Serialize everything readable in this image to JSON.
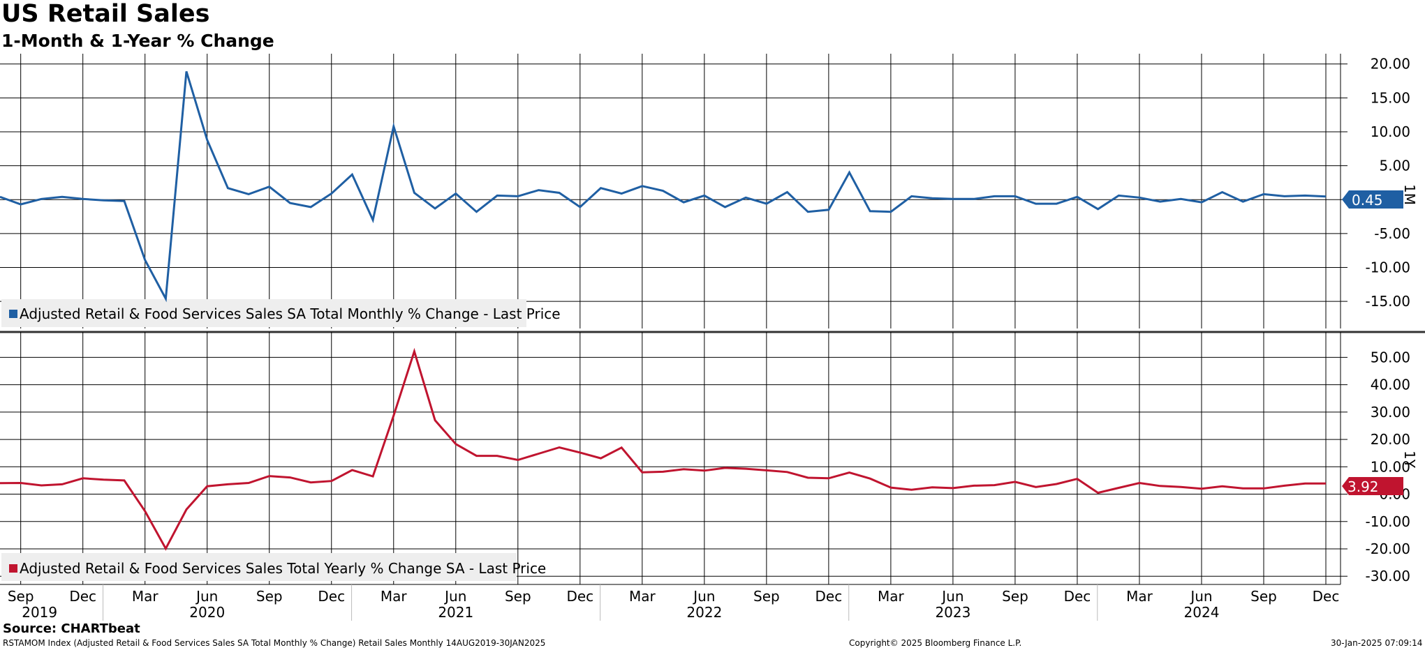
{
  "title": "US Retail Sales",
  "subtitle": "1-Month & 1-Year % Change",
  "source": "Source: CHARTbeat",
  "footer": {
    "left": "RSTAMOM Index (Adjusted Retail & Food Services Sales SA Total Monthly % Change) Retail Sales  Monthly 14AUG2019-30JAN2025",
    "center": "Copyright© 2025 Bloomberg Finance L.P.",
    "right": "30-Jan-2025 07:09:14"
  },
  "colors": {
    "monthly": "#1f5fa3",
    "yearly": "#c0142f"
  },
  "chart_data": [
    {
      "type": "line",
      "name": "1M",
      "legend": "Adjusted Retail & Food Services Sales SA Total Monthly % Change - Last Price",
      "last_value": "0.45",
      "ylim": [
        -19,
        21
      ],
      "yticks": [
        20,
        15,
        10,
        5,
        0,
        -5,
        -10,
        -15
      ],
      "ytick_labels": [
        "20.00",
        "15.00",
        "10.00",
        "5.00",
        "",
        "-5.00",
        "-10.00",
        "-15.00"
      ],
      "x": [
        "2019-08",
        "2019-09",
        "2019-10",
        "2019-11",
        "2019-12",
        "2020-01",
        "2020-02",
        "2020-03",
        "2020-04",
        "2020-05",
        "2020-06",
        "2020-07",
        "2020-08",
        "2020-09",
        "2020-10",
        "2020-11",
        "2020-12",
        "2021-01",
        "2021-02",
        "2021-03",
        "2021-04",
        "2021-05",
        "2021-06",
        "2021-07",
        "2021-08",
        "2021-09",
        "2021-10",
        "2021-11",
        "2021-12",
        "2022-01",
        "2022-02",
        "2022-03",
        "2022-04",
        "2022-05",
        "2022-06",
        "2022-07",
        "2022-08",
        "2022-09",
        "2022-10",
        "2022-11",
        "2022-12",
        "2023-01",
        "2023-02",
        "2023-03",
        "2023-04",
        "2023-05",
        "2023-06",
        "2023-07",
        "2023-08",
        "2023-09",
        "2023-10",
        "2023-11",
        "2023-12",
        "2024-01",
        "2024-02",
        "2024-03",
        "2024-04",
        "2024-05",
        "2024-06",
        "2024-07",
        "2024-08",
        "2024-09",
        "2024-10",
        "2024-11",
        "2024-12"
      ],
      "values": [
        0.4,
        -0.7,
        0.1,
        0.4,
        0.1,
        -0.1,
        -0.2,
        -8.9,
        -14.6,
        18.9,
        8.8,
        1.7,
        0.8,
        1.9,
        -0.5,
        -1.1,
        0.9,
        3.7,
        -3.0,
        10.8,
        1.0,
        -1.3,
        0.9,
        -1.8,
        0.6,
        0.5,
        1.4,
        1.0,
        -1.1,
        1.7,
        0.9,
        2.0,
        1.3,
        -0.4,
        0.6,
        -1.1,
        0.3,
        -0.6,
        1.1,
        -1.8,
        -1.5,
        4.0,
        -1.7,
        -1.8,
        0.5,
        0.2,
        0.1,
        0.1,
        0.5,
        0.5,
        -0.6,
        -0.6,
        0.4,
        -1.4,
        0.6,
        0.3,
        -0.3,
        0.1,
        -0.4,
        1.1,
        -0.3,
        0.8,
        0.5,
        0.6,
        0.45
      ]
    },
    {
      "type": "line",
      "name": "1Y",
      "legend": "Adjusted Retail & Food Services Sales Total Yearly % Change SA - Last Price",
      "last_value": "3.92",
      "ylim": [
        -33,
        58
      ],
      "yticks": [
        50,
        40,
        30,
        20,
        10,
        0,
        -10,
        -20,
        -30
      ],
      "ytick_labels": [
        "50.00",
        "40.00",
        "30.00",
        "20.00",
        "10.00",
        "0.00",
        "-10.00",
        "-20.00",
        "-30.00"
      ],
      "x": [
        "2019-08",
        "2019-09",
        "2019-10",
        "2019-11",
        "2019-12",
        "2020-01",
        "2020-02",
        "2020-03",
        "2020-04",
        "2020-05",
        "2020-06",
        "2020-07",
        "2020-08",
        "2020-09",
        "2020-10",
        "2020-11",
        "2020-12",
        "2021-01",
        "2021-02",
        "2021-03",
        "2021-04",
        "2021-05",
        "2021-06",
        "2021-07",
        "2021-08",
        "2021-09",
        "2021-10",
        "2021-11",
        "2021-12",
        "2022-01",
        "2022-02",
        "2022-03",
        "2022-04",
        "2022-05",
        "2022-06",
        "2022-07",
        "2022-08",
        "2022-09",
        "2022-10",
        "2022-11",
        "2022-12",
        "2023-01",
        "2023-02",
        "2023-03",
        "2023-04",
        "2023-05",
        "2023-06",
        "2023-07",
        "2023-08",
        "2023-09",
        "2023-10",
        "2023-11",
        "2023-12",
        "2024-01",
        "2024-02",
        "2024-03",
        "2024-04",
        "2024-05",
        "2024-06",
        "2024-07",
        "2024-08",
        "2024-09",
        "2024-10",
        "2024-11",
        "2024-12"
      ],
      "values": [
        4.0,
        4.1,
        3.2,
        3.6,
        5.8,
        5.3,
        5.0,
        -6.2,
        -19.9,
        -5.6,
        2.9,
        3.6,
        4.1,
        6.6,
        6.1,
        4.3,
        4.8,
        8.8,
        6.5,
        28.7,
        52.2,
        27.0,
        18.3,
        14.0,
        14.0,
        12.5,
        14.8,
        17.1,
        15.2,
        13.1,
        17.0,
        8.0,
        8.2,
        9.1,
        8.6,
        9.6,
        9.3,
        8.7,
        8.1,
        6.0,
        5.8,
        7.9,
        5.7,
        2.4,
        1.6,
        2.5,
        2.2,
        3.1,
        3.3,
        4.5,
        2.6,
        3.7,
        5.6,
        0.5,
        2.3,
        4.1,
        3.0,
        2.6,
        2.0,
        2.9,
        2.1,
        2.1,
        3.1,
        3.9,
        3.92
      ]
    }
  ],
  "x_axis": {
    "months": [
      "Sep",
      "Dec",
      "Mar",
      "Jun",
      "Sep",
      "Dec",
      "Mar",
      "Jun",
      "Sep",
      "Dec",
      "Mar",
      "Jun",
      "Sep",
      "Dec",
      "Mar",
      "Jun",
      "Sep",
      "Dec",
      "Mar",
      "Jun",
      "Sep",
      "Dec",
      "Mar",
      "Jun",
      "Sep",
      "Dec"
    ],
    "years": [
      "2019",
      "2020",
      "2021",
      "2022",
      "2023",
      "2024"
    ]
  }
}
